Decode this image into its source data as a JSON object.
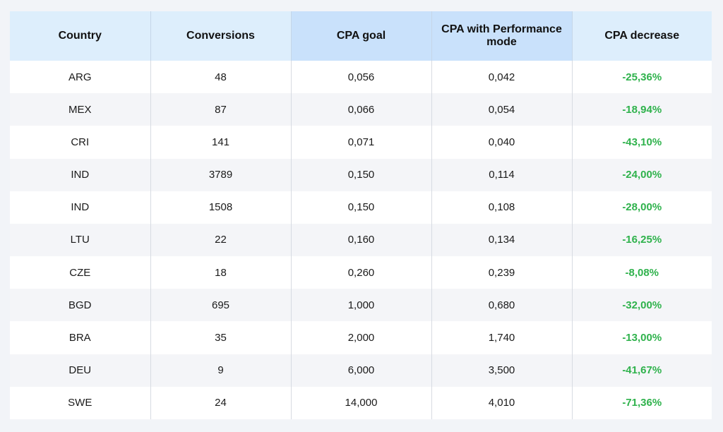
{
  "table": {
    "headers": {
      "country": "Country",
      "conversions": "Conversions",
      "cpa_goal": "CPA goal",
      "cpa_perf": "CPA with Performance mode",
      "cpa_decrease": "CPA decrease"
    },
    "rows": [
      {
        "country": "ARG",
        "conversions": "48",
        "cpa_goal": "0,056",
        "cpa_perf": "0,042",
        "cpa_decrease": "-25,36%"
      },
      {
        "country": "MEX",
        "conversions": "87",
        "cpa_goal": "0,066",
        "cpa_perf": "0,054",
        "cpa_decrease": "-18,94%"
      },
      {
        "country": "CRI",
        "conversions": "141",
        "cpa_goal": "0,071",
        "cpa_perf": "0,040",
        "cpa_decrease": "-43,10%"
      },
      {
        "country": "IND",
        "conversions": "3789",
        "cpa_goal": "0,150",
        "cpa_perf": "0,114",
        "cpa_decrease": "-24,00%"
      },
      {
        "country": "IND",
        "conversions": "1508",
        "cpa_goal": "0,150",
        "cpa_perf": "0,108",
        "cpa_decrease": "-28,00%"
      },
      {
        "country": "LTU",
        "conversions": "22",
        "cpa_goal": "0,160",
        "cpa_perf": "0,134",
        "cpa_decrease": "-16,25%"
      },
      {
        "country": "CZE",
        "conversions": "18",
        "cpa_goal": "0,260",
        "cpa_perf": "0,239",
        "cpa_decrease": "-8,08%"
      },
      {
        "country": "BGD",
        "conversions": "695",
        "cpa_goal": "1,000",
        "cpa_perf": "0,680",
        "cpa_decrease": "-32,00%"
      },
      {
        "country": "BRA",
        "conversions": "35",
        "cpa_goal": "2,000",
        "cpa_perf": "1,740",
        "cpa_decrease": "-13,00%"
      },
      {
        "country": "DEU",
        "conversions": "9",
        "cpa_goal": "6,000",
        "cpa_perf": "3,500",
        "cpa_decrease": "-41,67%"
      },
      {
        "country": "SWE",
        "conversions": "24",
        "cpa_goal": "14,000",
        "cpa_perf": "4,010",
        "cpa_decrease": "-71,36%"
      }
    ]
  },
  "colors": {
    "header_bg": "#ddeefc",
    "header_highlight_bg": "#c9e1fb",
    "row_alt_bg": "#f4f5f8",
    "decrease_text": "#2fb24c",
    "page_bg": "#f2f4f8"
  }
}
